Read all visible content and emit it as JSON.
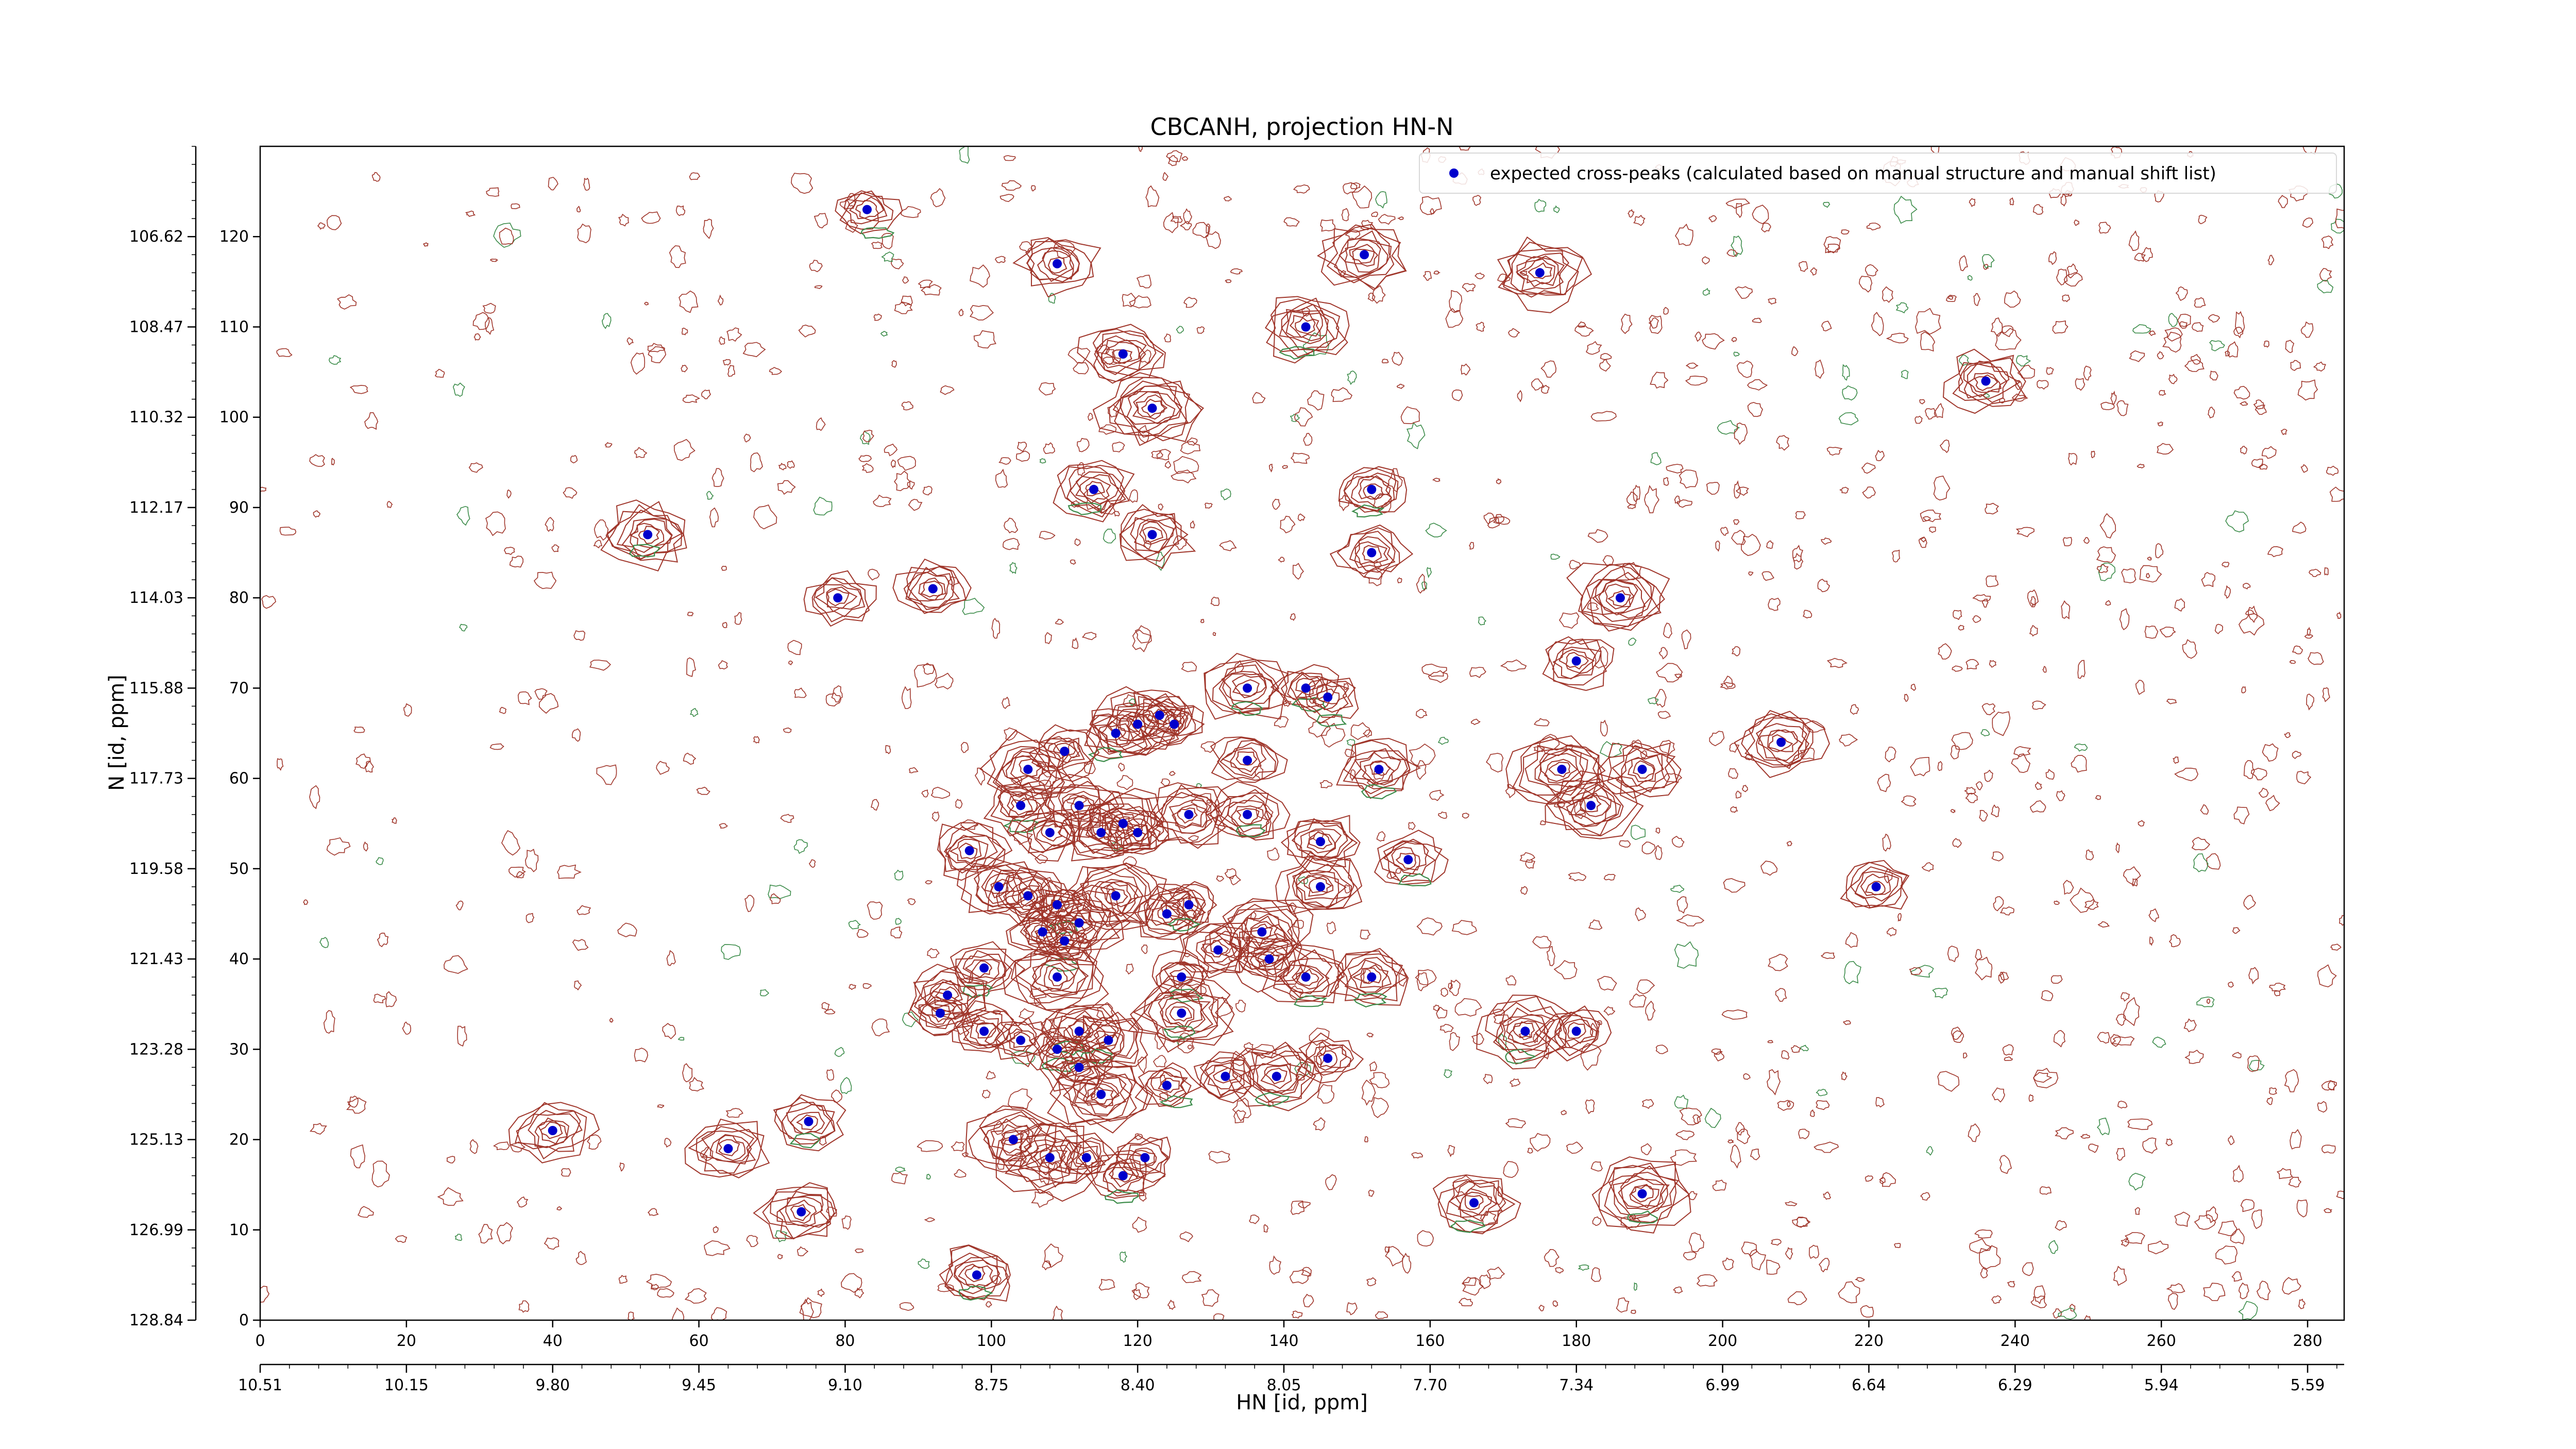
{
  "chart_data": {
    "type": "scatter",
    "title": "CBCANH, projection HN-N",
    "xlabel": "HN [id, ppm]",
    "ylabel": "N [id, ppm]",
    "x_index_range": [
      0,
      285
    ],
    "y_index_range": [
      0,
      130
    ],
    "xticks_index": [
      0,
      20,
      40,
      60,
      80,
      100,
      120,
      140,
      160,
      180,
      200,
      220,
      240,
      260,
      280
    ],
    "yticks_index": [
      0,
      10,
      20,
      30,
      40,
      50,
      60,
      70,
      80,
      90,
      100,
      110,
      120
    ],
    "xticks_ppm": {
      "positions": [
        0,
        20,
        40,
        60,
        80,
        100,
        120,
        140,
        160,
        180,
        200,
        220,
        240,
        260,
        280
      ],
      "labels": [
        "10.51",
        "10.15",
        "9.80",
        "9.45",
        "9.10",
        "8.75",
        "8.40",
        "8.05",
        "7.70",
        "7.34",
        "6.99",
        "6.64",
        "6.29",
        "5.94",
        "5.59"
      ]
    },
    "yticks_ppm": {
      "positions": [
        0,
        10,
        20,
        30,
        40,
        50,
        60,
        70,
        80,
        90,
        100,
        110,
        120
      ],
      "labels": [
        "128.84",
        "126.99",
        "125.13",
        "123.28",
        "121.43",
        "119.58",
        "117.73",
        "115.88",
        "114.03",
        "112.17",
        "110.32",
        "108.47",
        "106.62"
      ]
    },
    "legend": {
      "position": "top-right",
      "entries": [
        {
          "label": "expected cross-peaks (calculated based on manual structure and manual shift list)",
          "color": "#0000cc"
        }
      ]
    },
    "contour_colors": {
      "positive": "#a0362b",
      "negative": "#3c8c4a"
    },
    "series": [
      {
        "name": "expected cross-peaks (calculated based on manual structure and manual shift list)",
        "color": "#0000cc",
        "points": [
          [
            83,
            123
          ],
          [
            109,
            117
          ],
          [
            151,
            118
          ],
          [
            175,
            116
          ],
          [
            143,
            110
          ],
          [
            118,
            107
          ],
          [
            122,
            101
          ],
          [
            236,
            104
          ],
          [
            53,
            87
          ],
          [
            40,
            21
          ],
          [
            64,
            19
          ],
          [
            79,
            80
          ],
          [
            92,
            81
          ],
          [
            114,
            92
          ],
          [
            122,
            87
          ],
          [
            152,
            92
          ],
          [
            152,
            85
          ],
          [
            186,
            80
          ],
          [
            180,
            73
          ],
          [
            135,
            70
          ],
          [
            143,
            70
          ],
          [
            146,
            69
          ],
          [
            120,
            66
          ],
          [
            123,
            67
          ],
          [
            125,
            66
          ],
          [
            117,
            65
          ],
          [
            105,
            61
          ],
          [
            110,
            63
          ],
          [
            135,
            62
          ],
          [
            153,
            61
          ],
          [
            178,
            61
          ],
          [
            189,
            61
          ],
          [
            104,
            57
          ],
          [
            112,
            57
          ],
          [
            127,
            56
          ],
          [
            135,
            56
          ],
          [
            182,
            57
          ],
          [
            108,
            54
          ],
          [
            115,
            54
          ],
          [
            118,
            55
          ],
          [
            120,
            54
          ],
          [
            145,
            53
          ],
          [
            97,
            52
          ],
          [
            101,
            48
          ],
          [
            105,
            47
          ],
          [
            109,
            46
          ],
          [
            117,
            47
          ],
          [
            145,
            48
          ],
          [
            157,
            51
          ],
          [
            107,
            43
          ],
          [
            110,
            42
          ],
          [
            112,
            44
          ],
          [
            124,
            45
          ],
          [
            127,
            46
          ],
          [
            137,
            43
          ],
          [
            131,
            41
          ],
          [
            138,
            40
          ],
          [
            143,
            38
          ],
          [
            152,
            38
          ],
          [
            99,
            39
          ],
          [
            109,
            38
          ],
          [
            126,
            38
          ],
          [
            93,
            34
          ],
          [
            99,
            32
          ],
          [
            104,
            31
          ],
          [
            109,
            30
          ],
          [
            112,
            32
          ],
          [
            116,
            31
          ],
          [
            112,
            28
          ],
          [
            126,
            34
          ],
          [
            132,
            27
          ],
          [
            139,
            27
          ],
          [
            146,
            29
          ],
          [
            115,
            25
          ],
          [
            124,
            26
          ],
          [
            103,
            20
          ],
          [
            108,
            18
          ],
          [
            113,
            18
          ],
          [
            121,
            18
          ],
          [
            118,
            16
          ],
          [
            173,
            32
          ],
          [
            180,
            32
          ],
          [
            189,
            14
          ],
          [
            166,
            13
          ],
          [
            75,
            22
          ],
          [
            74,
            12
          ],
          [
            98,
            5
          ],
          [
            221,
            48
          ],
          [
            208,
            64
          ],
          [
            94,
            36
          ]
        ]
      }
    ]
  }
}
